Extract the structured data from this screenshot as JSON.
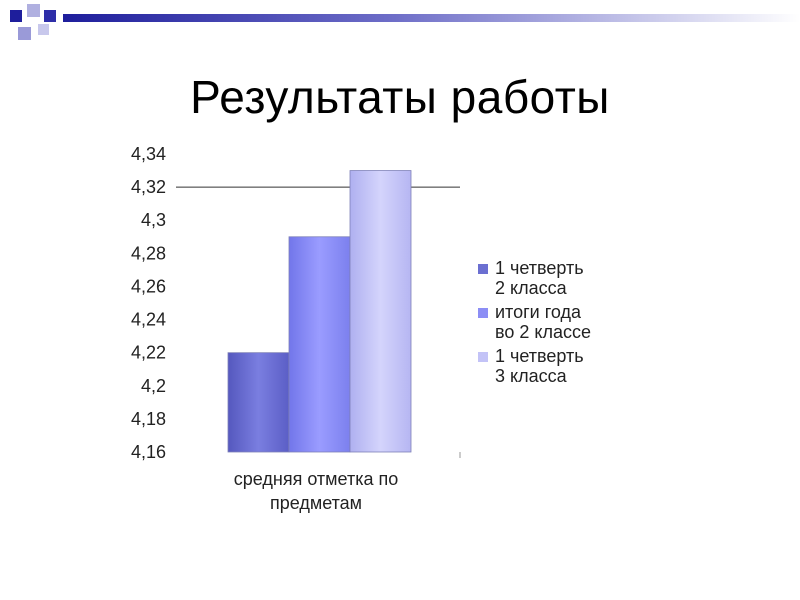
{
  "slide": {
    "title": "Результаты работы"
  },
  "colors": {
    "series1": "#6B6FD1",
    "series2": "#8C8EF5",
    "series3": "#C3C3F7",
    "deco_dark": "#2E2EA8",
    "deco_light": "#B8B8E6"
  },
  "chart_data": {
    "type": "bar",
    "title": "",
    "xlabel": "",
    "ylabel": "",
    "categories": [
      "средняя отметка по предметам"
    ],
    "category_label_lines": [
      "средняя отметка по",
      "предметам"
    ],
    "ylim": [
      4.16,
      4.34
    ],
    "yticks": [
      4.16,
      4.18,
      4.2,
      4.22,
      4.24,
      4.26,
      4.28,
      4.3,
      4.32,
      4.34
    ],
    "ytick_labels": [
      "4,16",
      "4,18",
      "4,2",
      "4,22",
      "4,24",
      "4,26",
      "4,28",
      "4,3",
      "4,32",
      "4,34"
    ],
    "gridline": 4.32,
    "legend_position": "right",
    "series": [
      {
        "name": "1 четверть 2 класса",
        "name_lines": [
          "1 четверть",
          "2 класса"
        ],
        "values": [
          4.22
        ]
      },
      {
        "name": "итоги года во 2 классе",
        "name_lines": [
          "итоги года",
          "во 2 классе"
        ],
        "values": [
          4.29
        ]
      },
      {
        "name": "1 четверть 3 класса",
        "name_lines": [
          "1 четверть",
          "3 класса"
        ],
        "values": [
          4.33
        ]
      }
    ]
  }
}
